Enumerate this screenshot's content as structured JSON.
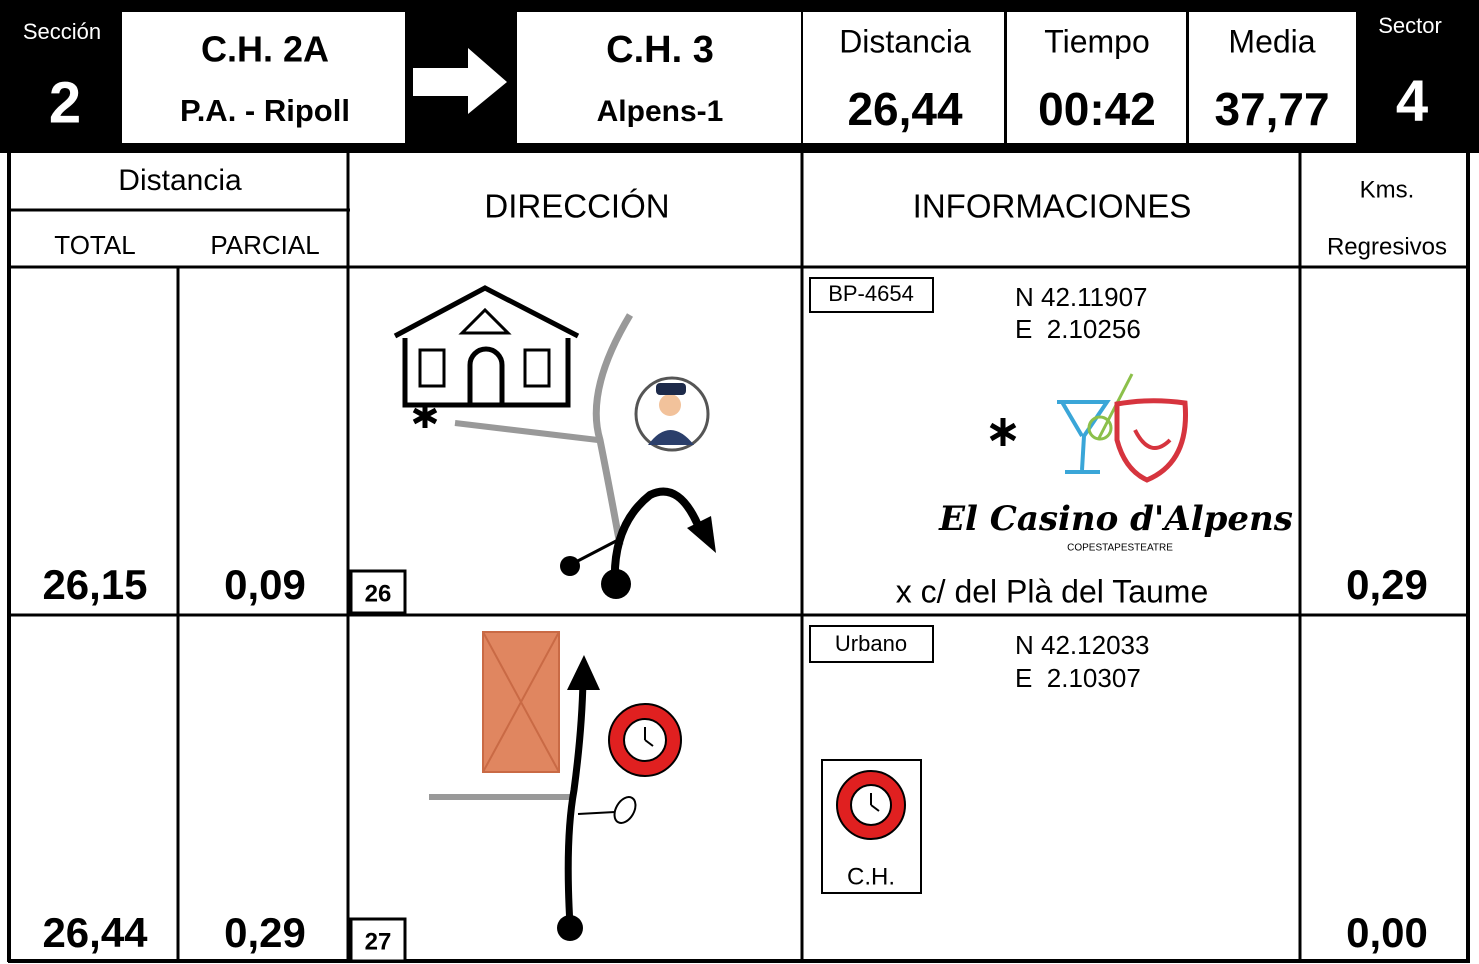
{
  "header": {
    "section_label": "Sección",
    "section": "2",
    "from": {
      "code": "C.H. 2A",
      "name": "P.A. - Ripoll"
    },
    "to": {
      "code": "C.H. 3",
      "name": "Alpens-1"
    },
    "distance_label": "Distancia",
    "distance": "26,44",
    "time_label": "Tiempo",
    "time": "00:42",
    "average_label": "Media",
    "average": "37,77",
    "sector_label": "Sector",
    "sector": "4"
  },
  "columns": {
    "distance": "Distancia",
    "total": "TOTAL",
    "partial": "PARCIAL",
    "direction": "DIRECCIÓN",
    "info": "INFORMACIONES",
    "kms": "Kms.",
    "remaining": "Regresivos"
  },
  "rows": [
    {
      "total": "26,15",
      "partial": "0,09",
      "number": "26",
      "road": "BP-4654",
      "lat": "N 42.11907",
      "lon": "E  2.10256",
      "logo_name": "El Casino d'Alpens",
      "logo_tagline": "COPESTAPESTEATRE",
      "note": "x c/ del Plà del Taume",
      "remaining": "0,29"
    },
    {
      "total": "26,44",
      "partial": "0,29",
      "number": "27",
      "road": "Urbano",
      "lat": "N 42.12033",
      "lon": "E  2.10307",
      "icon_label": "C.H.",
      "remaining": "0,00"
    }
  ]
}
